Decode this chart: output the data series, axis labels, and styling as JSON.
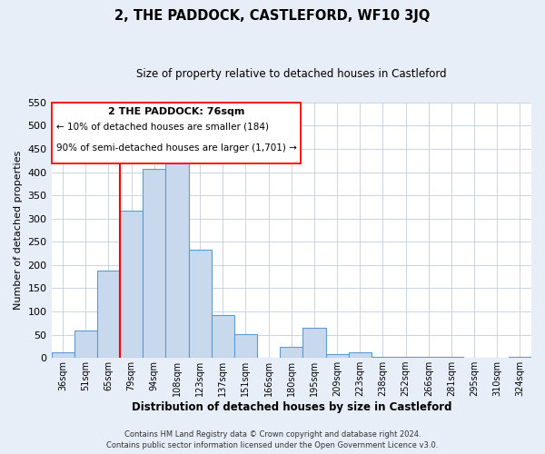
{
  "title": "2, THE PADDOCK, CASTLEFORD, WF10 3JQ",
  "subtitle": "Size of property relative to detached houses in Castleford",
  "xlabel": "Distribution of detached houses by size in Castleford",
  "ylabel": "Number of detached properties",
  "bar_labels": [
    "36sqm",
    "51sqm",
    "65sqm",
    "79sqm",
    "94sqm",
    "108sqm",
    "123sqm",
    "137sqm",
    "151sqm",
    "166sqm",
    "180sqm",
    "195sqm",
    "209sqm",
    "223sqm",
    "238sqm",
    "252sqm",
    "266sqm",
    "281sqm",
    "295sqm",
    "310sqm",
    "324sqm"
  ],
  "bar_values": [
    13,
    59,
    187,
    316,
    407,
    433,
    232,
    92,
    52,
    0,
    24,
    65,
    8,
    12,
    2,
    3,
    2,
    2,
    1,
    0,
    2
  ],
  "bar_color": "#c8d9ee",
  "bar_edge_color": "#5b9bd5",
  "vline_color": "red",
  "vline_xindex": 3,
  "ylim": [
    0,
    550
  ],
  "yticks": [
    0,
    50,
    100,
    150,
    200,
    250,
    300,
    350,
    400,
    450,
    500,
    550
  ],
  "annotation_title": "2 THE PADDOCK: 76sqm",
  "annotation_line1": "← 10% of detached houses are smaller (184)",
  "annotation_line2": "90% of semi-detached houses are larger (1,701) →",
  "footnote1": "Contains HM Land Registry data © Crown copyright and database right 2024.",
  "footnote2": "Contains public sector information licensed under the Open Government Licence v3.0.",
  "bg_color": "#e8eef7",
  "plot_bg_color": "#ffffff",
  "grid_color": "#c0cfe0"
}
